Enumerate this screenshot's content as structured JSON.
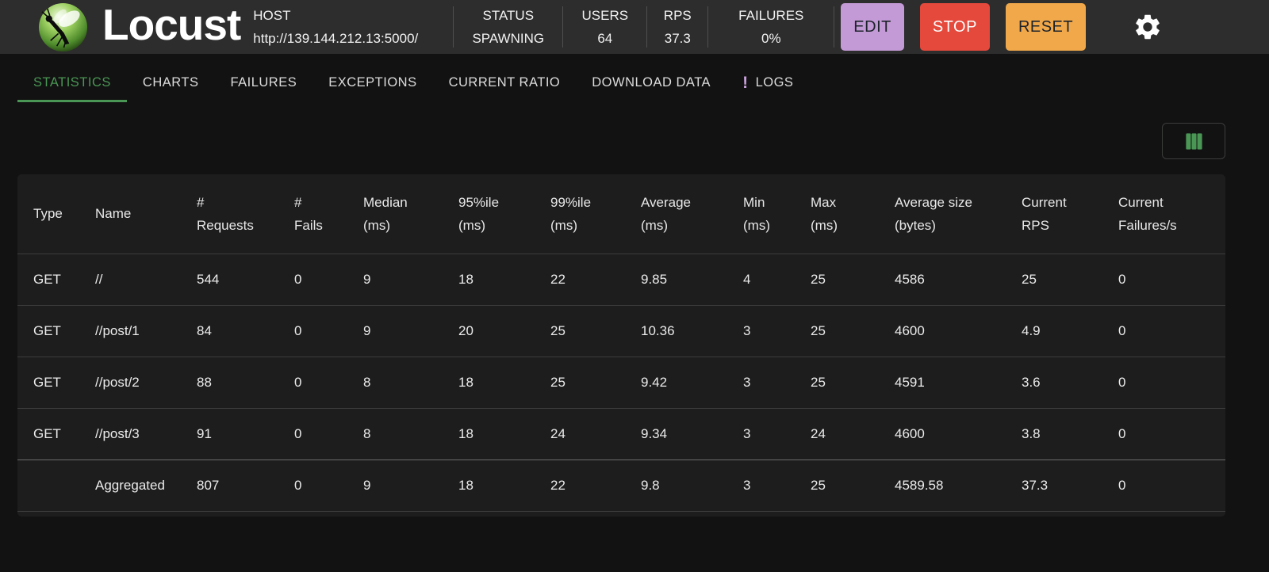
{
  "header": {
    "title": "Locust",
    "host": {
      "label": "HOST",
      "url": "http://139.144.212.13:5000/"
    },
    "stats": [
      {
        "label": "STATUS",
        "value": "SPAWNING"
      },
      {
        "label": "USERS",
        "value": "64"
      },
      {
        "label": "RPS",
        "value": "37.3"
      },
      {
        "label": "FAILURES",
        "value": "0%"
      }
    ],
    "buttons": {
      "edit": "EDIT",
      "stop": "STOP",
      "reset": "RESET"
    },
    "icons": {
      "settings": "gear-icon",
      "logo": "locust-logo"
    }
  },
  "tabs": [
    {
      "label": "STATISTICS",
      "active": true
    },
    {
      "label": "CHARTS",
      "active": false
    },
    {
      "label": "FAILURES",
      "active": false
    },
    {
      "label": "EXCEPTIONS",
      "active": false
    },
    {
      "label": "CURRENT RATIO",
      "active": false
    },
    {
      "label": "DOWNLOAD DATA",
      "active": false
    },
    {
      "label": "LOGS",
      "active": false,
      "badge": "!"
    }
  ],
  "toolbar": {
    "columns_icon": "columns-icon"
  },
  "table": {
    "columns": [
      {
        "top": "Type",
        "bottom": ""
      },
      {
        "top": "Name",
        "bottom": ""
      },
      {
        "top": "#",
        "bottom": "Requests"
      },
      {
        "top": "#",
        "bottom": "Fails"
      },
      {
        "top": "Median",
        "bottom": "(ms)"
      },
      {
        "top": "95%ile",
        "bottom": "(ms)"
      },
      {
        "top": "99%ile",
        "bottom": "(ms)"
      },
      {
        "top": "Average",
        "bottom": "(ms)"
      },
      {
        "top": "Min",
        "bottom": "(ms)"
      },
      {
        "top": "Max",
        "bottom": "(ms)"
      },
      {
        "top": "Average size",
        "bottom": "(bytes)"
      },
      {
        "top": "Current",
        "bottom": "RPS"
      },
      {
        "top": "Current",
        "bottom": "Failures/s"
      }
    ],
    "rows": [
      {
        "cells": [
          "GET",
          "//",
          "544",
          "0",
          "9",
          "18",
          "22",
          "9.85",
          "4",
          "25",
          "4586",
          "25",
          "0"
        ]
      },
      {
        "cells": [
          "GET",
          "//post/1",
          "84",
          "0",
          "9",
          "20",
          "25",
          "10.36",
          "3",
          "25",
          "4600",
          "4.9",
          "0"
        ]
      },
      {
        "cells": [
          "GET",
          "//post/2",
          "88",
          "0",
          "8",
          "18",
          "25",
          "9.42",
          "3",
          "25",
          "4591",
          "3.6",
          "0"
        ]
      },
      {
        "cells": [
          "GET",
          "//post/3",
          "91",
          "0",
          "8",
          "18",
          "24",
          "9.34",
          "3",
          "24",
          "4600",
          "3.8",
          "0"
        ]
      }
    ],
    "aggregated": {
      "cells": [
        "",
        "Aggregated",
        "807",
        "0",
        "9",
        "18",
        "22",
        "9.8",
        "3",
        "25",
        "4589.58",
        "37.3",
        "0"
      ]
    }
  },
  "colors": {
    "edit_bg": "#c49ad6",
    "stop_bg": "#e5493c",
    "reset_bg": "#f0a84a",
    "accent_green": "#4a9654",
    "badge_purple": "#c9a0dc"
  }
}
